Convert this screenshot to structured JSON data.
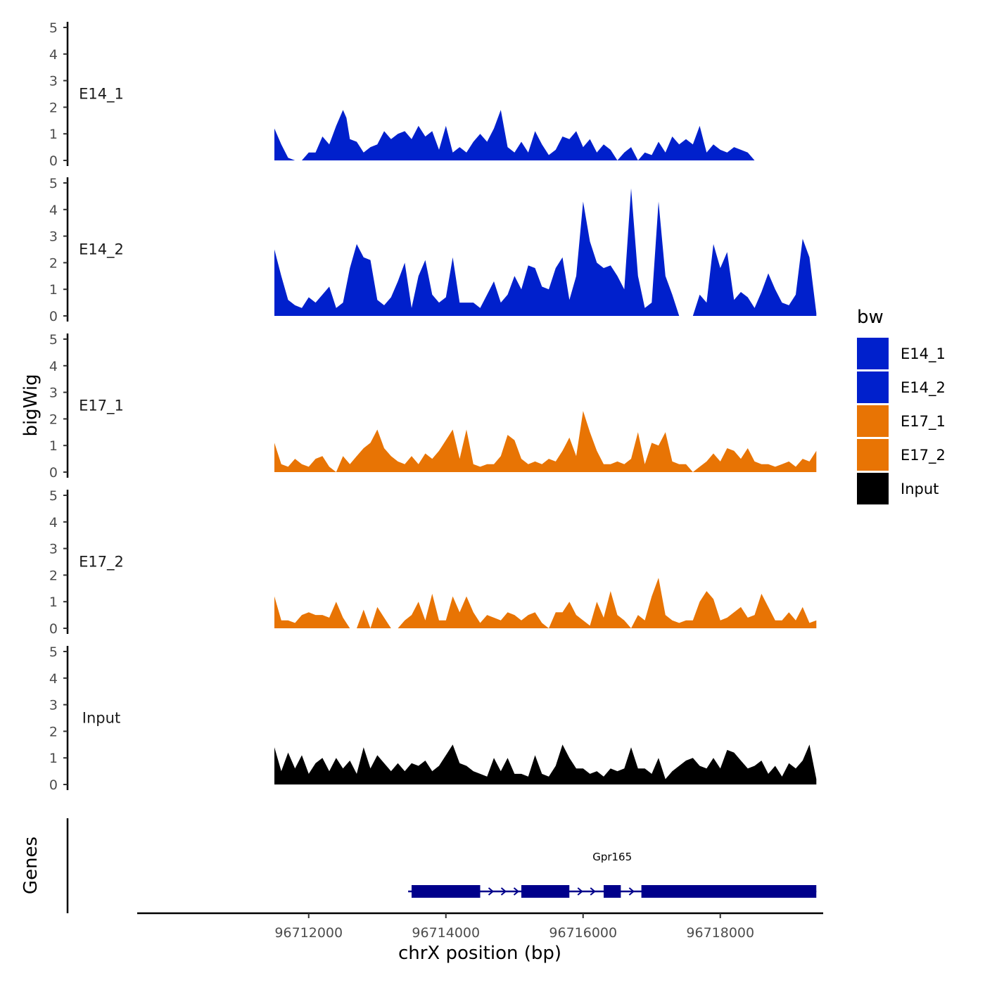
{
  "chart_data": {
    "type": "area",
    "ylabel": "bigWig",
    "xlabel": "chrX position (bp)",
    "xlim": [
      96709500,
      96719500
    ],
    "x_ticks": [
      96712000,
      96714000,
      96716000,
      96718000
    ],
    "x_tick_labels": [
      "96712000",
      "96714000",
      "96716000",
      "96718000"
    ],
    "ylim": [
      0,
      5
    ],
    "y_ticks": [
      0,
      1,
      2,
      3,
      4,
      5
    ],
    "y_tick_labels": [
      "0",
      "1",
      "2",
      "3",
      "4",
      "5"
    ],
    "legend": {
      "title": "bw",
      "position": "right",
      "entries": [
        {
          "name": "E14_1",
          "color": "#0020CC"
        },
        {
          "name": "E14_2",
          "color": "#0020CC"
        },
        {
          "name": "E17_1",
          "color": "#E87404"
        },
        {
          "name": "E17_2",
          "color": "#E87404"
        },
        {
          "name": "Input",
          "color": "#000000"
        }
      ]
    },
    "series": [
      {
        "name": "E14_1",
        "label": "E14_1",
        "color": "#0020CC",
        "x": [
          96711500,
          96711600,
          96711700,
          96711800,
          96711900,
          96712000,
          96712100,
          96712200,
          96712300,
          96712400,
          96712500,
          96712550,
          96712600,
          96712700,
          96712800,
          96712900,
          96713000,
          96713100,
          96713200,
          96713300,
          96713400,
          96713500,
          96713600,
          96713700,
          96713800,
          96713900,
          96714000,
          96714100,
          96714200,
          96714300,
          96714400,
          96714500,
          96714600,
          96714700,
          96714800,
          96714900,
          96715000,
          96715100,
          96715200,
          96715300,
          96715400,
          96715500,
          96715600,
          96715700,
          96715800,
          96715900,
          96716000,
          96716100,
          96716200,
          96716300,
          96716400,
          96716500,
          96716600,
          96716700,
          96716800,
          96716900,
          96717000,
          96717100,
          96717200,
          96717300,
          96717400,
          96717500,
          96717600,
          96717700,
          96717800,
          96717900,
          96718000,
          96718100,
          96718200,
          96718300,
          96718400,
          96718500,
          96718600,
          96718700,
          96718800,
          96718900,
          96719000
        ],
        "y": [
          1.2,
          0.6,
          0.1,
          0,
          0,
          0.3,
          0.3,
          0.9,
          0.6,
          1.3,
          1.9,
          1.6,
          0.8,
          0.7,
          0.3,
          0.5,
          0.6,
          1.1,
          0.8,
          1.0,
          1.1,
          0.8,
          1.3,
          0.9,
          1.1,
          0.4,
          1.3,
          0.3,
          0.5,
          0.3,
          0.7,
          1.0,
          0.7,
          1.2,
          1.9,
          0.5,
          0.3,
          0.7,
          0.3,
          1.1,
          0.6,
          0.2,
          0.4,
          0.9,
          0.8,
          1.1,
          0.5,
          0.8,
          0.3,
          0.6,
          0.4,
          0,
          0.3,
          0.5,
          0,
          0.3,
          0.2,
          0.7,
          0.3,
          0.9,
          0.6,
          0.8,
          0.6,
          1.3,
          0.3,
          0.6,
          0.4,
          0.3,
          0.5,
          0.4,
          0.3,
          0,
          0,
          0,
          0,
          0,
          0
        ]
      },
      {
        "name": "E14_2",
        "label": "E14_2",
        "color": "#0020CC",
        "x": [
          96711500,
          96711600,
          96711700,
          96711800,
          96711900,
          96712000,
          96712100,
          96712200,
          96712300,
          96712400,
          96712500,
          96712600,
          96712700,
          96712800,
          96712900,
          96713000,
          96713100,
          96713200,
          96713300,
          96713400,
          96713500,
          96713600,
          96713700,
          96713800,
          96713900,
          96714000,
          96714100,
          96714200,
          96714300,
          96714400,
          96714500,
          96714600,
          96714700,
          96714800,
          96714900,
          96715000,
          96715100,
          96715200,
          96715300,
          96715400,
          96715500,
          96715600,
          96715700,
          96715800,
          96715900,
          96716000,
          96716100,
          96716200,
          96716300,
          96716400,
          96716500,
          96716600,
          96716700,
          96716800,
          96716900,
          96717000,
          96717100,
          96717200,
          96717300,
          96717400,
          96717500,
          96717600,
          96717700,
          96717800,
          96717900,
          96718000,
          96718100,
          96718200,
          96718300,
          96718400,
          96718500,
          96718600,
          96718700,
          96718800,
          96718900,
          96719000,
          96719100,
          96719200,
          96719300,
          96719400
        ],
        "y": [
          2.5,
          1.5,
          0.6,
          0.4,
          0.3,
          0.7,
          0.5,
          0.8,
          1.1,
          0.3,
          0.5,
          1.8,
          2.7,
          2.2,
          2.1,
          0.6,
          0.4,
          0.7,
          1.3,
          2.0,
          0.3,
          1.5,
          2.1,
          0.8,
          0.5,
          0.7,
          2.2,
          0.5,
          0.5,
          0.5,
          0.3,
          0.8,
          1.3,
          0.5,
          0.8,
          1.5,
          1.0,
          1.9,
          1.8,
          1.1,
          1.0,
          1.8,
          2.2,
          0.6,
          1.5,
          4.3,
          2.8,
          2.0,
          1.8,
          1.9,
          1.5,
          1.0,
          4.8,
          1.5,
          0.3,
          0.5,
          4.3,
          1.5,
          0.8,
          0,
          0,
          0,
          0.8,
          0.5,
          2.7,
          1.8,
          2.4,
          0.6,
          0.9,
          0.7,
          0.3,
          0.9,
          1.6,
          1.0,
          0.5,
          0.4,
          0.8,
          2.9,
          2.2,
          0.1
        ]
      },
      {
        "name": "E17_1",
        "label": "E17_1",
        "color": "#E87404",
        "x": [
          96711500,
          96711600,
          96711700,
          96711800,
          96711900,
          96712000,
          96712100,
          96712200,
          96712300,
          96712400,
          96712500,
          96712600,
          96712700,
          96712800,
          96712900,
          96713000,
          96713100,
          96713200,
          96713300,
          96713400,
          96713500,
          96713600,
          96713700,
          96713800,
          96713900,
          96714000,
          96714100,
          96714200,
          96714300,
          96714400,
          96714500,
          96714600,
          96714700,
          96714800,
          96714900,
          96715000,
          96715100,
          96715200,
          96715300,
          96715400,
          96715500,
          96715600,
          96715700,
          96715800,
          96715900,
          96716000,
          96716100,
          96716200,
          96716300,
          96716400,
          96716500,
          96716600,
          96716700,
          96716800,
          96716900,
          96717000,
          96717100,
          96717200,
          96717300,
          96717400,
          96717500,
          96717600,
          96717700,
          96717800,
          96717900,
          96718000,
          96718100,
          96718200,
          96718300,
          96718400,
          96718500,
          96718600,
          96718700,
          96718800,
          96718900,
          96719000,
          96719100,
          96719200,
          96719300,
          96719400
        ],
        "y": [
          1.1,
          0.3,
          0.2,
          0.5,
          0.3,
          0.2,
          0.5,
          0.6,
          0.2,
          0,
          0.6,
          0.3,
          0.6,
          0.9,
          1.1,
          1.6,
          0.9,
          0.6,
          0.4,
          0.3,
          0.6,
          0.3,
          0.7,
          0.5,
          0.8,
          1.2,
          1.6,
          0.5,
          1.6,
          0.3,
          0.2,
          0.3,
          0.3,
          0.6,
          1.4,
          1.2,
          0.5,
          0.3,
          0.4,
          0.3,
          0.5,
          0.4,
          0.8,
          1.3,
          0.6,
          2.3,
          1.5,
          0.8,
          0.3,
          0.3,
          0.4,
          0.3,
          0.5,
          1.5,
          0.3,
          1.1,
          1.0,
          1.5,
          0.4,
          0.3,
          0.3,
          0,
          0.2,
          0.4,
          0.7,
          0.4,
          0.9,
          0.8,
          0.5,
          0.9,
          0.4,
          0.3,
          0.3,
          0.2,
          0.3,
          0.4,
          0.2,
          0.5,
          0.4,
          0.8
        ]
      },
      {
        "name": "E17_2",
        "label": "E17_2",
        "color": "#E87404",
        "x": [
          96711500,
          96711600,
          96711700,
          96711800,
          96711900,
          96712000,
          96712100,
          96712200,
          96712300,
          96712400,
          96712500,
          96712600,
          96712700,
          96712800,
          96712900,
          96713000,
          96713100,
          96713200,
          96713300,
          96713400,
          96713500,
          96713600,
          96713700,
          96713800,
          96713900,
          96714000,
          96714100,
          96714200,
          96714300,
          96714400,
          96714500,
          96714600,
          96714700,
          96714800,
          96714900,
          96715000,
          96715100,
          96715200,
          96715300,
          96715400,
          96715500,
          96715600,
          96715700,
          96715800,
          96715900,
          96716000,
          96716100,
          96716200,
          96716300,
          96716400,
          96716500,
          96716600,
          96716700,
          96716800,
          96716900,
          96717000,
          96717100,
          96717200,
          96717300,
          96717400,
          96717500,
          96717600,
          96717700,
          96717800,
          96717900,
          96718000,
          96718100,
          96718200,
          96718300,
          96718400,
          96718500,
          96718600,
          96718700,
          96718800,
          96718900,
          96719000,
          96719100,
          96719200,
          96719300,
          96719400
        ],
        "y": [
          1.2,
          0.3,
          0.3,
          0.2,
          0.5,
          0.6,
          0.5,
          0.5,
          0.4,
          1.0,
          0.4,
          0,
          0,
          0.7,
          0,
          0.8,
          0.4,
          0,
          0,
          0.3,
          0.5,
          1.0,
          0.3,
          1.3,
          0.3,
          0.3,
          1.2,
          0.6,
          1.2,
          0.6,
          0.2,
          0.5,
          0.4,
          0.3,
          0.6,
          0.5,
          0.3,
          0.5,
          0.6,
          0.2,
          0,
          0.6,
          0.6,
          1.0,
          0.5,
          0.3,
          0.1,
          1.0,
          0.4,
          1.4,
          0.5,
          0.3,
          0,
          0.5,
          0.3,
          1.2,
          1.9,
          0.5,
          0.3,
          0.2,
          0.3,
          0.3,
          1.0,
          1.4,
          1.1,
          0.3,
          0.4,
          0.6,
          0.8,
          0.4,
          0.5,
          1.3,
          0.8,
          0.3,
          0.3,
          0.6,
          0.3,
          0.8,
          0.2,
          0.3
        ]
      },
      {
        "name": "Input",
        "label": "Input",
        "color": "#000000",
        "x": [
          96711500,
          96711600,
          96711700,
          96711800,
          96711900,
          96712000,
          96712100,
          96712200,
          96712300,
          96712400,
          96712500,
          96712600,
          96712700,
          96712800,
          96712900,
          96713000,
          96713100,
          96713200,
          96713300,
          96713400,
          96713500,
          96713600,
          96713700,
          96713800,
          96713900,
          96714000,
          96714100,
          96714200,
          96714300,
          96714400,
          96714500,
          96714600,
          96714700,
          96714800,
          96714900,
          96715000,
          96715100,
          96715200,
          96715300,
          96715400,
          96715500,
          96715600,
          96715700,
          96715800,
          96715900,
          96716000,
          96716100,
          96716200,
          96716300,
          96716400,
          96716500,
          96716600,
          96716700,
          96716800,
          96716900,
          96717000,
          96717100,
          96717200,
          96717300,
          96717400,
          96717500,
          96717600,
          96717700,
          96717800,
          96717900,
          96718000,
          96718100,
          96718200,
          96718300,
          96718400,
          96718500,
          96718600,
          96718700,
          96718800,
          96718900,
          96719000,
          96719100,
          96719200,
          96719300,
          96719400
        ],
        "y": [
          1.4,
          0.5,
          1.2,
          0.6,
          1.1,
          0.4,
          0.8,
          1.0,
          0.5,
          1.0,
          0.6,
          0.9,
          0.4,
          1.4,
          0.6,
          1.1,
          0.8,
          0.5,
          0.8,
          0.5,
          0.8,
          0.7,
          0.9,
          0.5,
          0.7,
          1.1,
          1.5,
          0.8,
          0.7,
          0.5,
          0.4,
          0.3,
          1.0,
          0.5,
          1.0,
          0.4,
          0.4,
          0.3,
          1.1,
          0.4,
          0.3,
          0.7,
          1.5,
          1.0,
          0.6,
          0.6,
          0.4,
          0.5,
          0.3,
          0.6,
          0.5,
          0.6,
          1.4,
          0.6,
          0.6,
          0.4,
          1.0,
          0.2,
          0.5,
          0.7,
          0.9,
          1.0,
          0.7,
          0.6,
          1.0,
          0.6,
          1.3,
          1.2,
          0.9,
          0.6,
          0.7,
          0.9,
          0.4,
          0.7,
          0.3,
          0.8,
          0.6,
          0.9,
          1.5,
          0.2
        ]
      }
    ],
    "genes": {
      "track_label": "Genes",
      "items": [
        {
          "name": "Gpr165",
          "strand": "+",
          "start": 96713450,
          "end": 96719400,
          "exons": [
            [
              96713500,
              96714500
            ],
            [
              96715100,
              96715800
            ],
            [
              96716300,
              96716550
            ],
            [
              96716850,
              96719400
            ]
          ]
        }
      ]
    }
  }
}
